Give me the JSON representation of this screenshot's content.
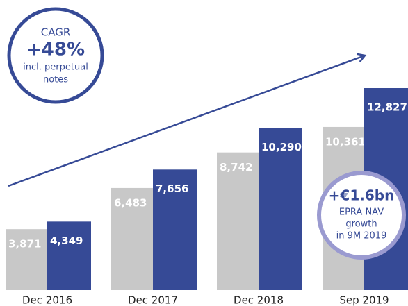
{
  "chart_data": {
    "type": "bar",
    "categories": [
      "Dec 2016",
      "Dec 2017",
      "Dec 2018",
      "Sep 2019"
    ],
    "series": [
      {
        "color": "#c8c8c8",
        "values": [
          3871,
          6483,
          8742,
          10361
        ],
        "value_labels": [
          "3,871",
          "6,483",
          "8,742",
          "10,361"
        ]
      },
      {
        "color": "#364a96",
        "values": [
          4349,
          7656,
          10290,
          12827
        ],
        "value_labels": [
          "4,349",
          "7,656",
          "10,290",
          "12,827"
        ]
      }
    ],
    "annotations": [
      {
        "lines": [
          "CAGR",
          "+48%",
          "incl. perpetual",
          "notes"
        ]
      },
      {
        "lines": [
          "+€1.6bn",
          "EPRA NAV",
          "growth",
          "in 9M 2019"
        ]
      }
    ]
  }
}
